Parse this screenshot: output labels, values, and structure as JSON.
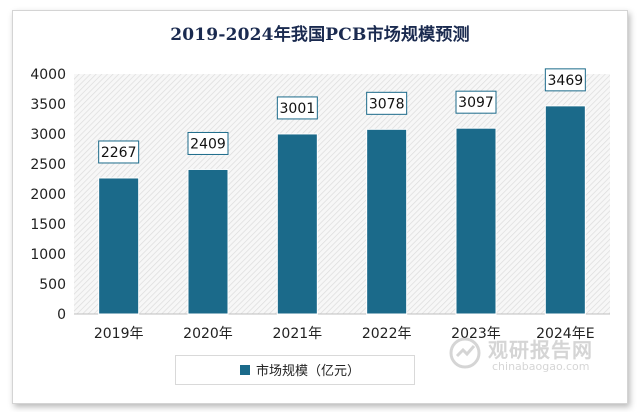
{
  "chart_data": {
    "type": "bar",
    "title": "2019-2024年我国PCB市场规模预测",
    "categories": [
      "2019年",
      "2020年",
      "2021年",
      "2022年",
      "2023年",
      "2024年E"
    ],
    "series": [
      {
        "name": "市场规模（亿元）",
        "values": [
          2267,
          2409,
          3001,
          3078,
          3097,
          3469
        ]
      }
    ],
    "ylim": [
      0,
      4000
    ],
    "yticks": [
      "0",
      "500",
      "1000",
      "1500",
      "2000",
      "2500",
      "3000",
      "3500",
      "4000"
    ],
    "data_labels": [
      "2267",
      "2409",
      "3001",
      "3078",
      "3097",
      "3469"
    ],
    "legend_position": "bottom",
    "grid": false,
    "bar_color": "#1b6a8a",
    "plot_pattern": "diagonal-hatch"
  },
  "watermark": {
    "text_cn": "观研报告网",
    "url": "chinabaogao.com",
    "color": "#8a8a8a"
  }
}
